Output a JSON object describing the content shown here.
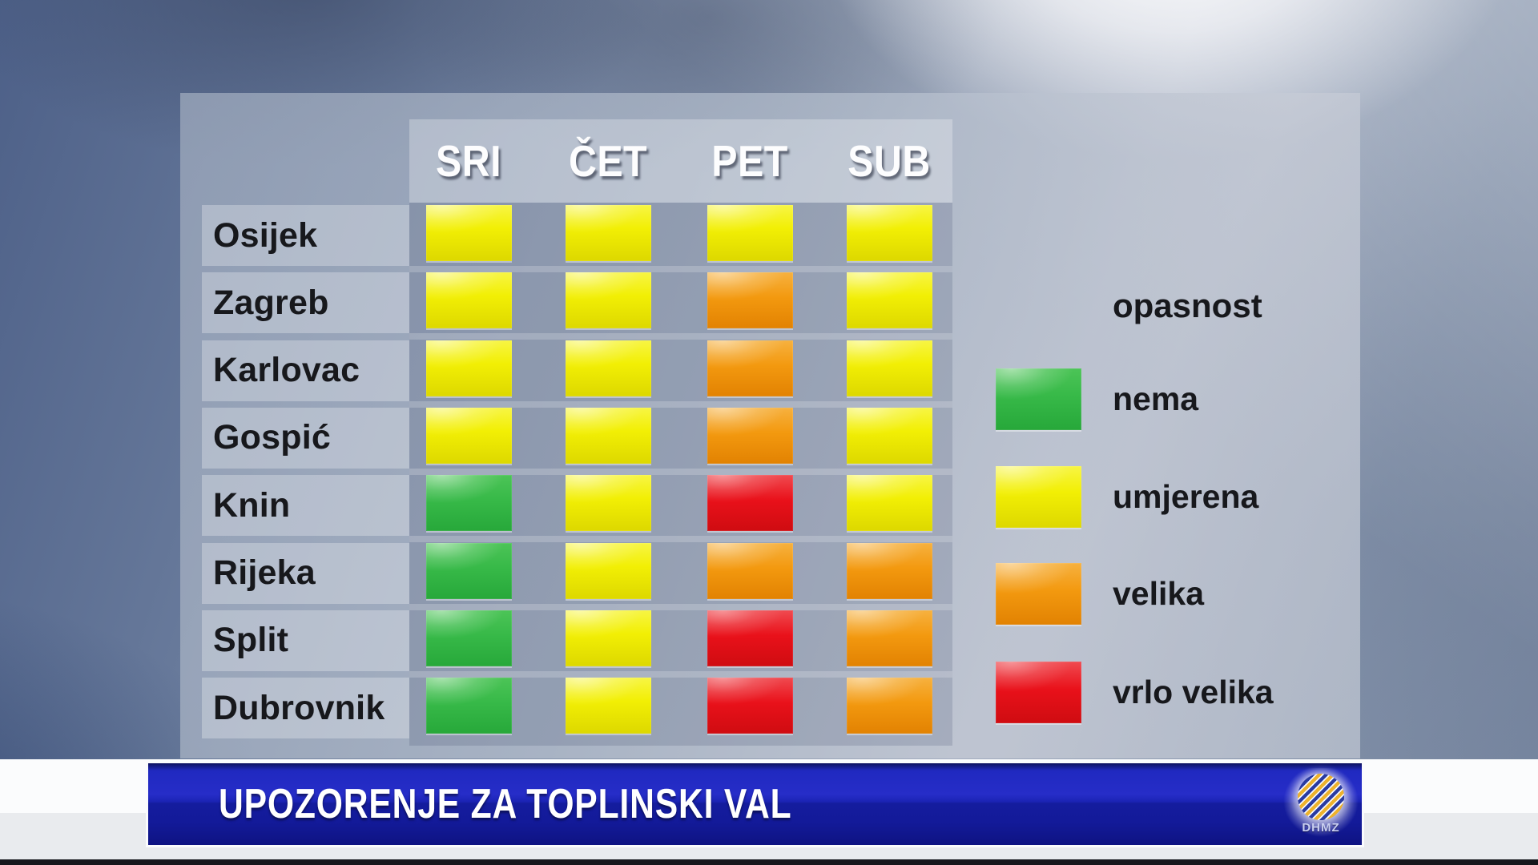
{
  "banner": {
    "title": "UPOZORENJE ZA TOPLINSKI VAL",
    "logo_text": "DHMZ"
  },
  "legend": {
    "title": "opasnost",
    "items": [
      {
        "label": "nema",
        "level": "nema",
        "color": "#37b948"
      },
      {
        "label": "umjerena",
        "level": "umjerena",
        "color": "#f2ef04"
      },
      {
        "label": "velika",
        "level": "velika",
        "color": "#f3990f"
      },
      {
        "label": "vrlo velika",
        "level": "vrlo velika",
        "color": "#e9111a"
      }
    ]
  },
  "table": {
    "columns": [
      "SRI",
      "ČET",
      "PET",
      "SUB"
    ],
    "rows": [
      {
        "city": "Osijek",
        "levels": [
          "umjerena",
          "umjerena",
          "umjerena",
          "umjerena"
        ]
      },
      {
        "city": "Zagreb",
        "levels": [
          "umjerena",
          "umjerena",
          "velika",
          "umjerena"
        ]
      },
      {
        "city": "Karlovac",
        "levels": [
          "umjerena",
          "umjerena",
          "velika",
          "umjerena"
        ]
      },
      {
        "city": "Gospić",
        "levels": [
          "umjerena",
          "umjerena",
          "velika",
          "umjerena"
        ]
      },
      {
        "city": "Knin",
        "levels": [
          "nema",
          "umjerena",
          "vrlo velika",
          "umjerena"
        ]
      },
      {
        "city": "Rijeka",
        "levels": [
          "nema",
          "umjerena",
          "velika",
          "velika"
        ]
      },
      {
        "city": "Split",
        "levels": [
          "nema",
          "umjerena",
          "vrlo velika",
          "velika"
        ]
      },
      {
        "city": "Dubrovnik",
        "levels": [
          "nema",
          "umjerena",
          "vrlo velika",
          "velika"
        ]
      }
    ]
  },
  "colors": {
    "nema": "#37b948",
    "umjerena": "#f2ef04",
    "velika": "#f3990f",
    "vrlo_velika": "#e9111a",
    "banner_blue": "#1b23b4"
  },
  "chart_data": {
    "type": "heatmap",
    "title": "UPOZORENJE ZA TOPLINSKI VAL",
    "x_categories": [
      "SRI",
      "ČET",
      "PET",
      "SUB"
    ],
    "y_categories": [
      "Osijek",
      "Zagreb",
      "Karlovac",
      "Gospić",
      "Knin",
      "Rijeka",
      "Split",
      "Dubrovnik"
    ],
    "values": [
      [
        "umjerena",
        "umjerena",
        "umjerena",
        "umjerena"
      ],
      [
        "umjerena",
        "umjerena",
        "velika",
        "umjerena"
      ],
      [
        "umjerena",
        "umjerena",
        "velika",
        "umjerena"
      ],
      [
        "umjerena",
        "umjerena",
        "velika",
        "umjerena"
      ],
      [
        "nema",
        "umjerena",
        "vrlo velika",
        "umjerena"
      ],
      [
        "nema",
        "umjerena",
        "velika",
        "velika"
      ],
      [
        "nema",
        "umjerena",
        "vrlo velika",
        "velika"
      ],
      [
        "nema",
        "umjerena",
        "vrlo velika",
        "velika"
      ]
    ],
    "legend": {
      "title": "opasnost",
      "position": "right",
      "levels": [
        {
          "label": "nema",
          "color": "#37b948"
        },
        {
          "label": "umjerena",
          "color": "#f2ef04"
        },
        {
          "label": "velika",
          "color": "#f3990f"
        },
        {
          "label": "vrlo velika",
          "color": "#e9111a"
        }
      ]
    }
  }
}
